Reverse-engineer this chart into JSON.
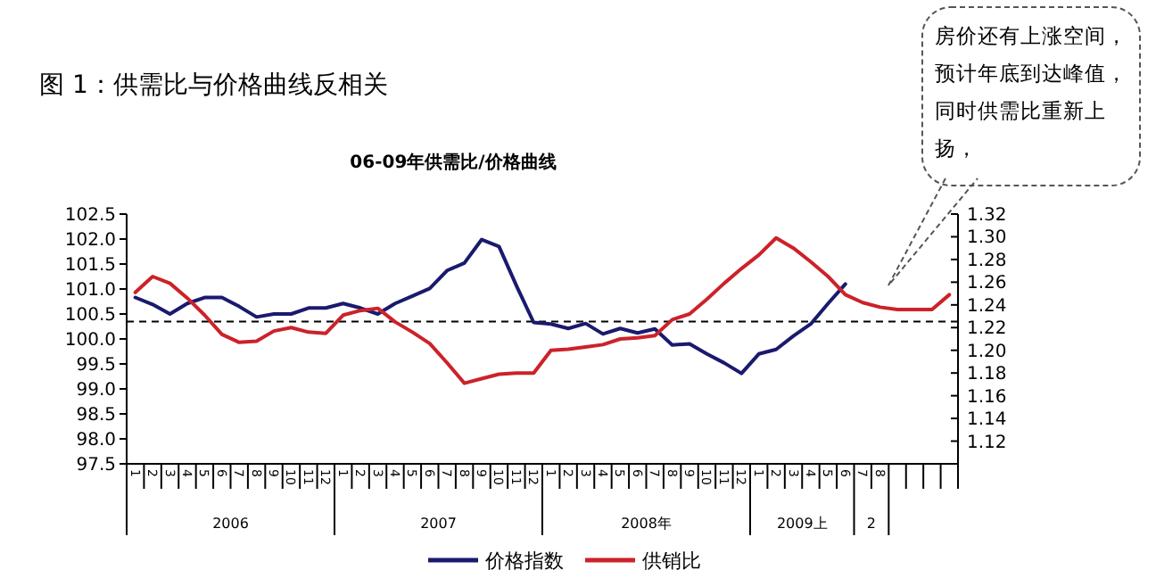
{
  "chart_data": {
    "type": "line",
    "title": "06-09年供需比/价格曲线",
    "subtitle": "图 1：供需比与价格曲线反相关",
    "annotations": [
      "房价还有上涨空间，预计年底到达峰值，同时供需比重新上扬，",
      "2006",
      "2007",
      "2008年",
      "2009上",
      "2"
    ],
    "categories": [
      "1",
      "2",
      "3",
      "4",
      "5",
      "6",
      "7",
      "8",
      "9",
      "10",
      "11",
      "12",
      "1",
      "2",
      "3",
      "4",
      "5",
      "6",
      "7",
      "8",
      "9",
      "10",
      "11",
      "12",
      "1",
      "2",
      "3",
      "4",
      "5",
      "6",
      "7",
      "8",
      "9",
      "10",
      "11",
      "12",
      "1",
      "2",
      "3",
      "4",
      "5",
      "6",
      "7",
      "8",
      null,
      null,
      null,
      null
    ],
    "series": [
      {
        "name": "价格指数",
        "color": "#1a1a6e",
        "values": [
          100.83,
          100.69,
          100.5,
          100.71,
          100.83,
          100.83,
          100.65,
          100.44,
          100.5,
          100.5,
          100.62,
          100.62,
          100.71,
          100.62,
          100.5,
          100.71,
          100.86,
          101.01,
          101.37,
          101.52,
          101.99,
          101.85,
          101.07,
          100.33,
          100.3,
          100.21,
          100.31,
          100.1,
          100.21,
          100.12,
          100.2,
          99.88,
          99.9,
          99.7,
          99.52,
          99.31,
          99.7,
          99.79,
          100.06,
          100.3,
          100.71,
          101.1,
          null,
          null,
          null,
          null,
          null,
          null
        ]
      },
      {
        "name": "供销比",
        "color": "#cc2229",
        "axis": "y2",
        "values": [
          1.251,
          1.265,
          1.259,
          1.246,
          1.231,
          1.214,
          1.207,
          1.208,
          1.217,
          1.22,
          1.216,
          1.215,
          1.231,
          1.235,
          1.237,
          1.225,
          1.216,
          1.206,
          1.189,
          1.171,
          1.175,
          1.179,
          1.18,
          1.18,
          1.2,
          1.201,
          1.203,
          1.205,
          1.21,
          1.211,
          1.213,
          1.227,
          1.232,
          1.245,
          1.259,
          1.272,
          1.284,
          1.299,
          1.29,
          1.278,
          1.265,
          1.249,
          1.242,
          1.238,
          1.236,
          1.236,
          1.236,
          1.249
        ]
      }
    ],
    "ylim": [
      97.5,
      102.5
    ],
    "yticks": [
      {
        "value": 97.5,
        "label": "97.5"
      },
      {
        "value": 98,
        "label": "98.0"
      },
      {
        "value": 98.5,
        "label": "98.5"
      },
      {
        "value": 99,
        "label": "99.0"
      },
      {
        "value": 99.5,
        "label": "99.5"
      },
      {
        "value": 100,
        "label": "100.0"
      },
      {
        "value": 100.5,
        "label": "100.5"
      },
      {
        "value": 101,
        "label": "101.0"
      },
      {
        "value": 101.5,
        "label": "101.5"
      },
      {
        "value": 102,
        "label": "102.0"
      },
      {
        "value": 102.5,
        "label": "102.5"
      }
    ],
    "y2lim": [
      1.1,
      1.32
    ],
    "y2ticks": [
      1.12,
      1.14,
      1.16,
      1.18,
      {
        "value": 1.2,
        "label": "1.20"
      },
      1.22,
      1.24,
      1.26,
      1.28,
      {
        "value": 1.3,
        "label": "1.30"
      },
      1.32
    ],
    "ref_lines": [
      {
        "axis": "y",
        "value": 100.35,
        "color": "#000000",
        "line_style": "dashed"
      }
    ],
    "legend": "bottom",
    "grid": false,
    "marker": "none",
    "line_style": "solid"
  }
}
